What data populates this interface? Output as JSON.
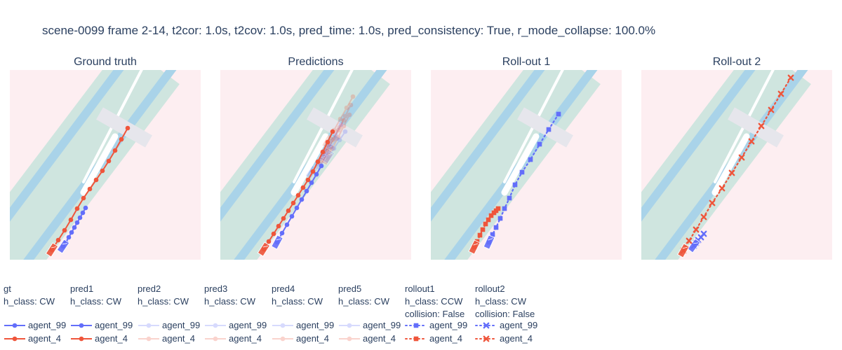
{
  "title": "scene-0099 frame 2-14, t2cor: 1.0s, t2cov: 1.0s, pred_time: 1.0s, pred_consistency: True, r_mode_collapse: 100.0%",
  "colors": {
    "agent_99": "#636efa",
    "agent_4": "#ef553b",
    "background": "#fdeef1",
    "road": "#cfe5df",
    "lane_boundary": "#a9d3e9",
    "crosswalk": "#e6e6ec",
    "island": "#ffffff"
  },
  "chart_data": [
    {
      "type": "scatter",
      "title": "Ground truth",
      "series": [
        {
          "name": "agent_99",
          "legendgroup": "gt",
          "line": "solid",
          "marker": "circle",
          "opacity": 1.0,
          "x": [
            122,
            118,
            114,
            110,
            106,
            102,
            98,
            94,
            90
          ],
          "y": [
            297,
            304,
            311,
            318,
            325,
            332,
            339,
            346,
            352
          ]
        },
        {
          "name": "agent_4",
          "legendgroup": "gt",
          "line": "solid",
          "marker": "circle",
          "opacity": 1.0,
          "x": [
            182,
            173,
            164,
            155,
            146,
            137,
            128,
            119,
            110,
            101,
            92,
            83,
            74
          ],
          "y": [
            183,
            199,
            215,
            230,
            244,
            257,
            270,
            283,
            298,
            314,
            329,
            343,
            357
          ]
        }
      ]
    },
    {
      "type": "scatter",
      "title": "Predictions",
      "series": [
        {
          "name": "agent_99",
          "legendgroup": "pred1",
          "line": "solid",
          "marker": "circle",
          "opacity": 1.0,
          "x": [
            458,
            451,
            444,
            437,
            430,
            423,
            416,
            409,
            402,
            395
          ],
          "y": [
            237,
            249,
            261,
            273,
            285,
            297,
            309,
            321,
            333,
            346
          ]
        },
        {
          "name": "agent_4",
          "legendgroup": "pred1",
          "line": "solid",
          "marker": "circle",
          "opacity": 1.0,
          "x": [
            474,
            467,
            460,
            453,
            446,
            439,
            432,
            425,
            418,
            411,
            404,
            397,
            390,
            383,
            376
          ],
          "y": [
            188,
            203,
            217,
            231,
            245,
            257,
            268,
            279,
            290,
            301,
            312,
            323,
            334,
            345,
            356
          ]
        },
        {
          "name": "agent_99",
          "legendgroup": "pred2",
          "line": "solid",
          "marker": "circle",
          "opacity": 0.25,
          "x": [
            468,
            460,
            452,
            444
          ],
          "y": [
            210,
            222,
            234,
            246
          ]
        },
        {
          "name": "agent_4",
          "legendgroup": "pred2",
          "line": "solid",
          "marker": "circle",
          "opacity": 0.25,
          "x": [
            500,
            492,
            484,
            476,
            468
          ],
          "y": [
            150,
            166,
            182,
            198,
            214
          ]
        },
        {
          "name": "agent_99",
          "legendgroup": "pred3",
          "line": "solid",
          "marker": "circle",
          "opacity": 0.25,
          "x": [
            480,
            472,
            464,
            456
          ],
          "y": [
            198,
            210,
            222,
            234
          ]
        },
        {
          "name": "agent_4",
          "legendgroup": "pred3",
          "line": "solid",
          "marker": "circle",
          "opacity": 0.25,
          "x": [
            498,
            490,
            482,
            474,
            466
          ],
          "y": [
            164,
            180,
            196,
            212,
            226
          ]
        },
        {
          "name": "agent_99",
          "legendgroup": "pred4",
          "line": "solid",
          "marker": "circle",
          "opacity": 0.25,
          "x": [
            486,
            478,
            470,
            462
          ],
          "y": [
            178,
            192,
            206,
            220
          ]
        },
        {
          "name": "agent_4",
          "legendgroup": "pred4",
          "line": "solid",
          "marker": "circle",
          "opacity": 0.25,
          "x": [
            503,
            494,
            485,
            476,
            467
          ],
          "y": [
            138,
            154,
            170,
            186,
            202
          ]
        },
        {
          "name": "agent_99",
          "legendgroup": "pred5",
          "line": "solid",
          "marker": "circle",
          "opacity": 0.25,
          "x": [
            492,
            484,
            476,
            468
          ],
          "y": [
            188,
            200,
            212,
            224
          ]
        },
        {
          "name": "agent_4",
          "legendgroup": "pred5",
          "line": "solid",
          "marker": "circle",
          "opacity": 0.25,
          "x": [
            490,
            482,
            474,
            466,
            458
          ],
          "y": [
            172,
            186,
            200,
            214,
            228
          ]
        }
      ]
    },
    {
      "type": "scatter",
      "title": "Roll-out 1",
      "series": [
        {
          "name": "agent_99",
          "legendgroup": "rollout1",
          "line": "dot",
          "marker": "square",
          "opacity": 1.0,
          "x": [
            796,
            782,
            769,
            756,
            744,
            734,
            726,
            719,
            713,
            707,
            702,
            697
          ],
          "y": [
            163,
            185,
            206,
            228,
            246,
            264,
            283,
            298,
            312,
            325,
            335,
            346
          ]
        },
        {
          "name": "agent_4",
          "legendgroup": "rollout1",
          "line": "dot",
          "marker": "square",
          "opacity": 1.0,
          "x": [
            710,
            707,
            704,
            700,
            696,
            692,
            688,
            684,
            680,
            676
          ],
          "y": [
            298,
            301,
            304,
            308,
            314,
            320,
            328,
            336,
            345,
            353
          ]
        }
      ]
    },
    {
      "type": "scatter",
      "title": "Roll-out 2",
      "series": [
        {
          "name": "agent_99",
          "legendgroup": "rollout2",
          "line": "dot",
          "marker": "x",
          "opacity": 1.0,
          "x": [
            1003,
            999,
            995,
            992,
            989
          ],
          "y": [
            334,
            339,
            343,
            347,
            351
          ]
        },
        {
          "name": "agent_4",
          "legendgroup": "rollout2",
          "line": "dot",
          "marker": "x",
          "opacity": 1.0,
          "x": [
            1127,
            1113,
            1099,
            1085,
            1071,
            1057,
            1043,
            1029,
            1015,
            1003,
            992,
            982,
            974
          ],
          "y": [
            111,
            134,
            157,
            180,
            202,
            225,
            247,
            269,
            290,
            310,
            328,
            344,
            358
          ]
        }
      ]
    }
  ],
  "legend": [
    {
      "id": "gt",
      "lines": [
        "gt",
        "h_class: CW"
      ],
      "line": "solid",
      "marker": "circle",
      "opacity": 1.0
    },
    {
      "id": "pred1",
      "lines": [
        "pred1",
        "h_class: CW"
      ],
      "line": "solid",
      "marker": "circle",
      "opacity": 1.0
    },
    {
      "id": "pred2",
      "lines": [
        "pred2",
        "h_class: CW"
      ],
      "line": "solid",
      "marker": "circle",
      "opacity": 0.25
    },
    {
      "id": "pred3",
      "lines": [
        "pred3",
        "h_class: CW"
      ],
      "line": "solid",
      "marker": "circle",
      "opacity": 0.25
    },
    {
      "id": "pred4",
      "lines": [
        "pred4",
        "h_class: CW"
      ],
      "line": "solid",
      "marker": "circle",
      "opacity": 0.25
    },
    {
      "id": "pred5",
      "lines": [
        "pred5",
        "h_class: CW"
      ],
      "line": "solid",
      "marker": "circle",
      "opacity": 0.25
    },
    {
      "id": "rollout1",
      "lines": [
        "rollout1",
        "h_class: CCW",
        "collision: False"
      ],
      "line": "dot",
      "marker": "square",
      "opacity": 1.0
    },
    {
      "id": "rollout2",
      "lines": [
        "rollout2",
        "h_class: CW",
        "collision: False"
      ],
      "line": "dot",
      "marker": "x",
      "opacity": 1.0
    }
  ],
  "legend_entries": [
    "agent_99",
    "agent_4"
  ]
}
